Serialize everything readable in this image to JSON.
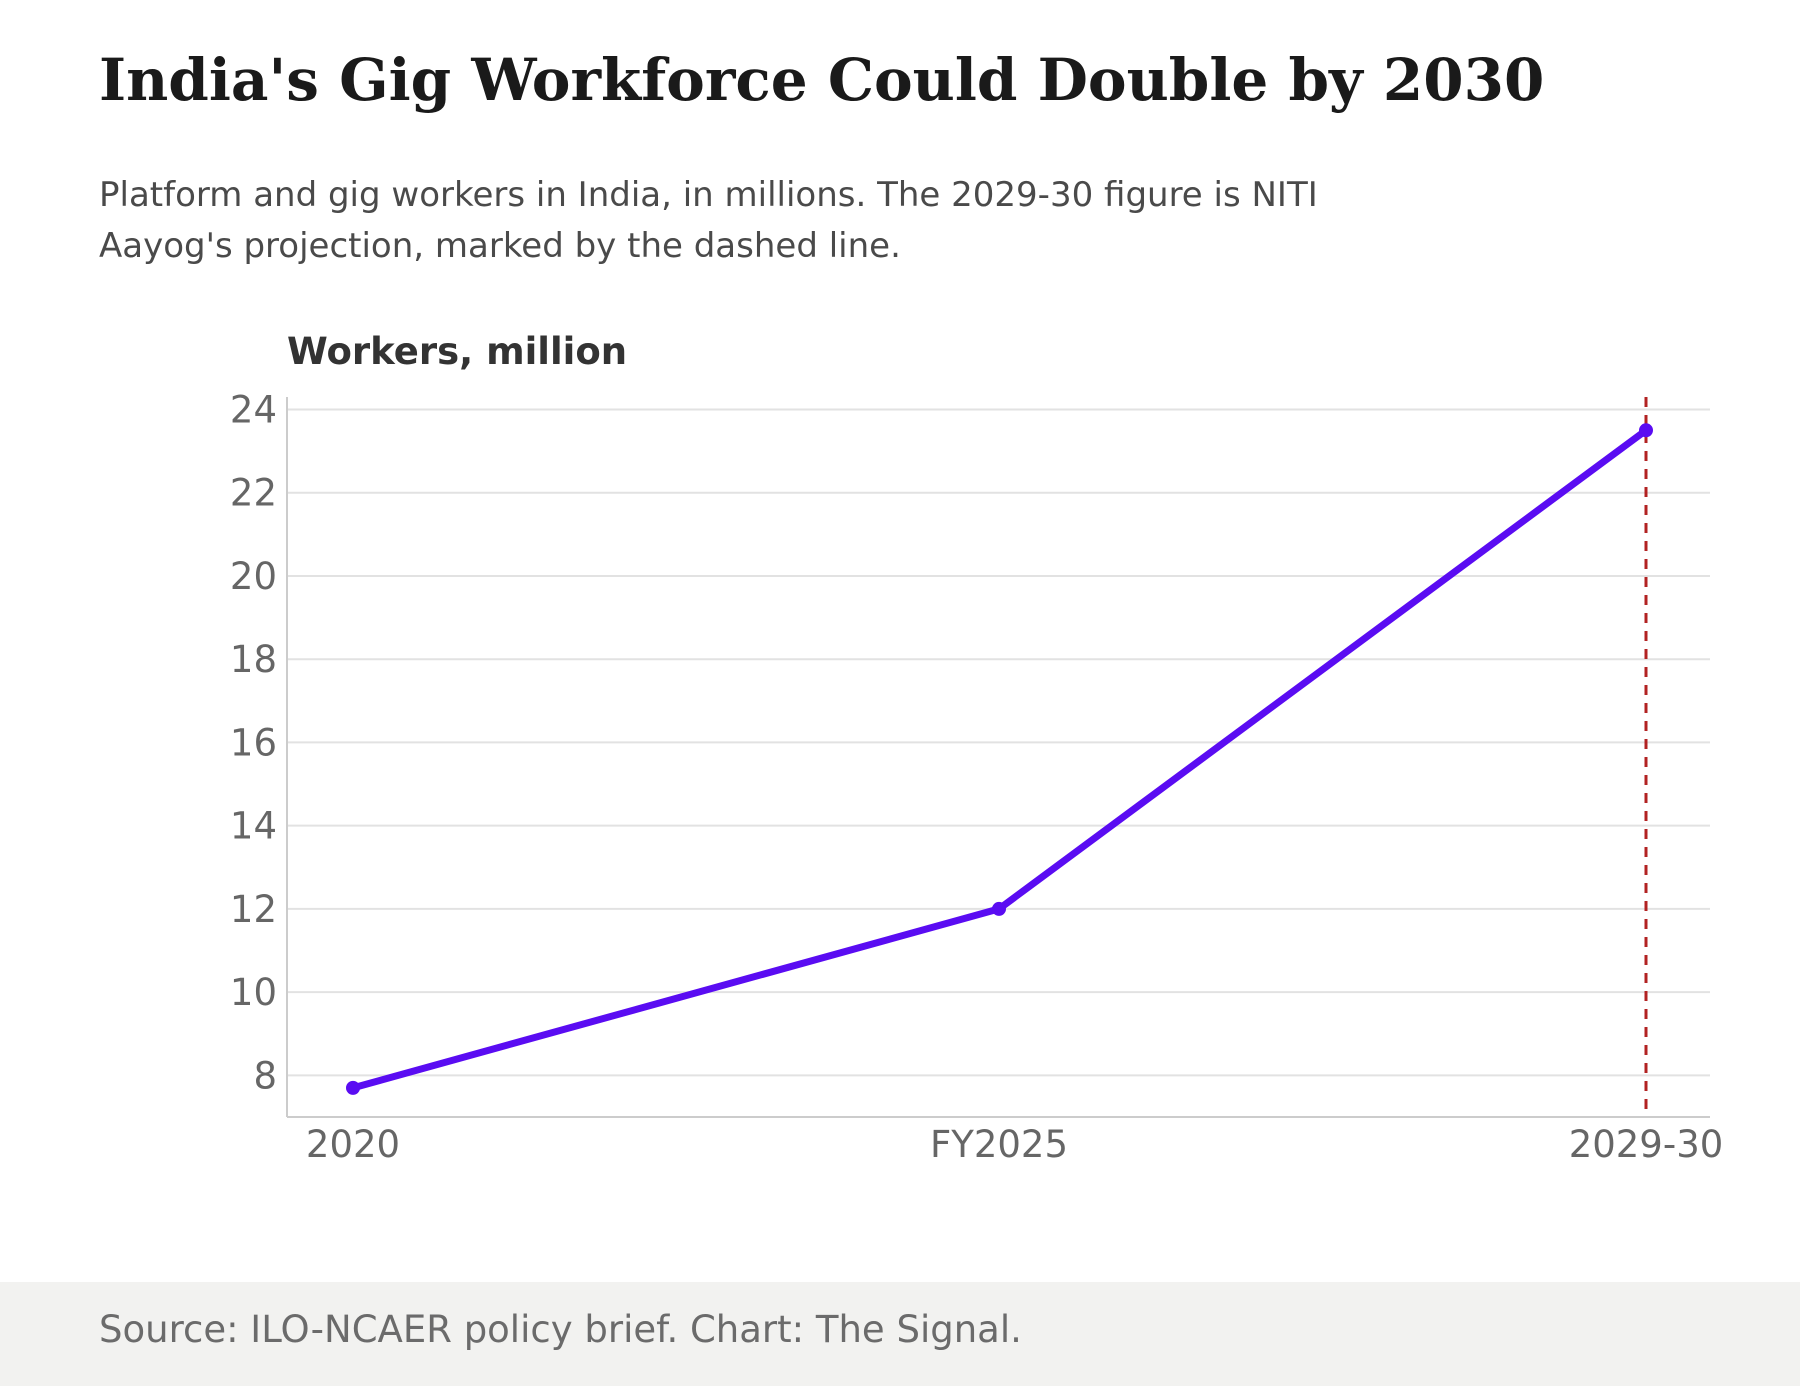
{
  "header": {
    "title": "India's Gig Workforce Could Double by 2030",
    "subtitle": "Platform and gig workers in India, in millions. The 2029-30 figure is NITI Aayog's projection, marked by the dashed line."
  },
  "footer": {
    "source": "Source: ILO-NCAER policy brief. Chart: The Signal."
  },
  "colors": {
    "line": "#5a0cf2",
    "projection_marker": "#b22222",
    "grid": "#e2e2e2",
    "axis": "#cccccc"
  },
  "chart_data": {
    "type": "line",
    "title": "India's Gig Workforce Could Double by 2030",
    "ylabel": "Workers, million",
    "xlabel": "",
    "categories": [
      "2020",
      "FY2025",
      "2029-30"
    ],
    "series": [
      {
        "values": [
          7.7,
          12,
          23.5
        ]
      }
    ],
    "ylim": [
      7,
      24.3
    ],
    "yticks": [
      8,
      10,
      12,
      14,
      16,
      18,
      20,
      22,
      24
    ],
    "grid": true,
    "projection_marker": {
      "at": "2029-30",
      "style": "dashed"
    }
  }
}
